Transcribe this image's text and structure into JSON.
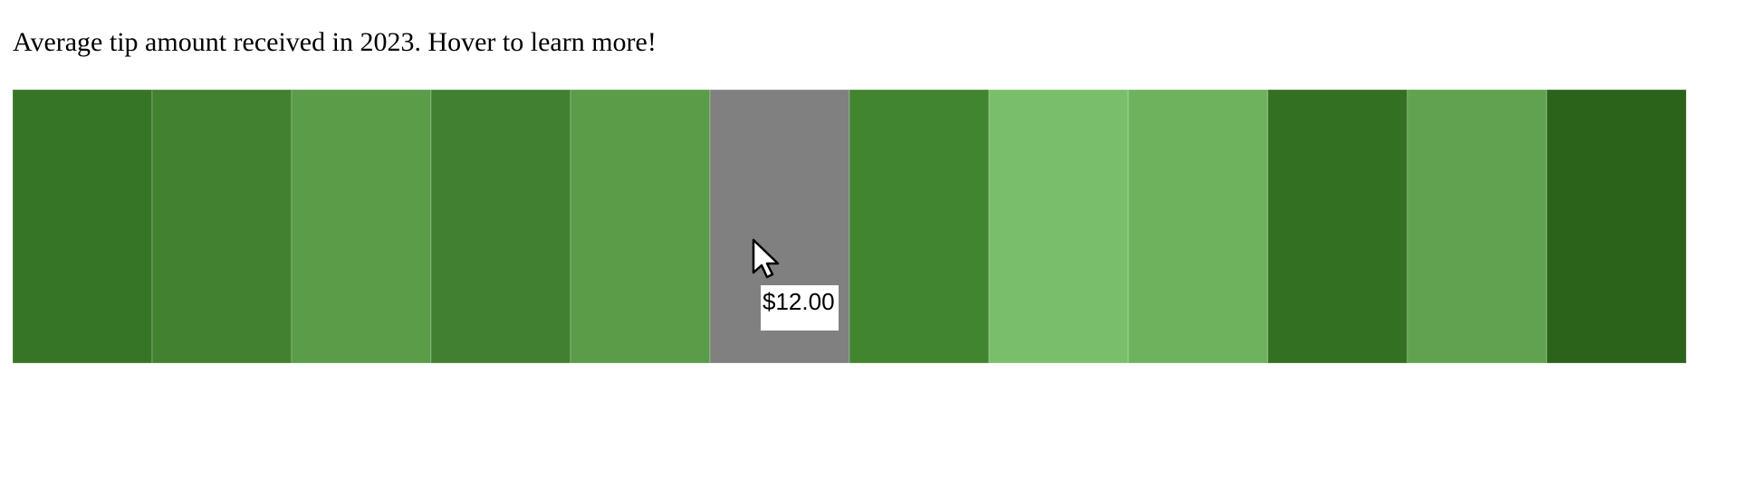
{
  "caption": "Average tip amount received in 2023. Hover to learn more!",
  "tooltip": {
    "text": "$12.00"
  },
  "chart_data": {
    "type": "heatmap",
    "title": "Average tip amount received in 2023. Hover to learn more!",
    "cells": 12,
    "hovered_index": 5,
    "hovered_value": 12.0,
    "colors": [
      "#377526",
      "#42812f",
      "#5a9c48",
      "#418030",
      "#5a9c48",
      "#808080",
      "#42852f",
      "#79bf6b",
      "#6eb25e",
      "#337022",
      "#60a24f",
      "#2c631b"
    ],
    "hover_color": "#808080",
    "legend": "none",
    "grid": false
  }
}
